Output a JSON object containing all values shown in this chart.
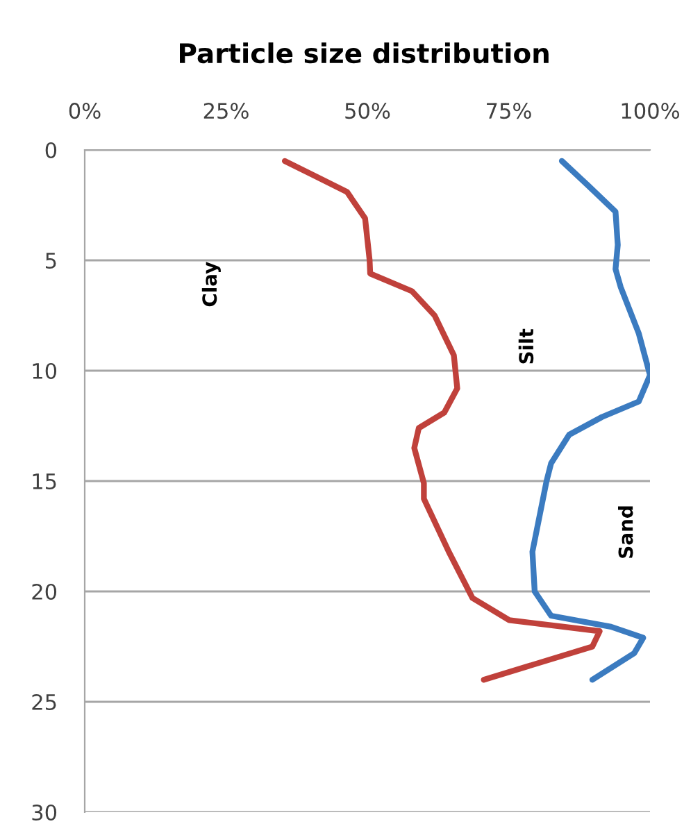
{
  "chart_data": {
    "type": "line",
    "title": "Particle size distribution",
    "xlim": [
      0,
      100
    ],
    "xticks": [
      {
        "value": 0,
        "label": "0%"
      },
      {
        "value": 25,
        "label": "25%"
      },
      {
        "value": 50,
        "label": "50%"
      },
      {
        "value": 75,
        "label": "75%"
      },
      {
        "value": 100,
        "label": "100%"
      }
    ],
    "ylim": [
      30,
      0
    ],
    "yticks": [
      0,
      5,
      10,
      15,
      20,
      25,
      30
    ],
    "grid": "y",
    "marker": "none",
    "line_style": "solid",
    "series": [
      {
        "color": "#c0413b",
        "x": [
          35.4,
          46.4,
          49.6,
          50.4,
          50.5,
          57.9,
          61.9,
          65.3,
          65.9,
          63.6,
          59.1,
          58.3,
          60.0,
          60.0,
          64.4,
          68.6,
          75.1,
          91.1,
          89.8,
          70.6
        ],
        "values": [
          0.5,
          1.9,
          3.1,
          5.0,
          5.6,
          6.4,
          7.5,
          9.3,
          10.8,
          11.9,
          12.6,
          13.5,
          15.1,
          15.8,
          18.2,
          20.3,
          21.3,
          21.8,
          22.5,
          24.0
        ]
      },
      {
        "color": "#3b7bc0",
        "x": [
          84.4,
          89.0,
          93.9,
          94.3,
          93.9,
          94.8,
          98.0,
          100,
          98.0,
          91.5,
          85.7,
          82.5,
          81.7,
          79.2,
          79.6,
          82.5,
          93.1,
          98.8,
          97.2,
          89.8
        ],
        "values": [
          0.5,
          1.6,
          2.8,
          4.3,
          5.4,
          6.2,
          8.3,
          10.2,
          11.4,
          12.1,
          12.9,
          14.2,
          15.0,
          18.2,
          20.0,
          21.1,
          21.6,
          22.1,
          22.8,
          24.0
        ]
      }
    ],
    "annotations": [
      "Clay",
      "Silt",
      "Sand"
    ]
  }
}
